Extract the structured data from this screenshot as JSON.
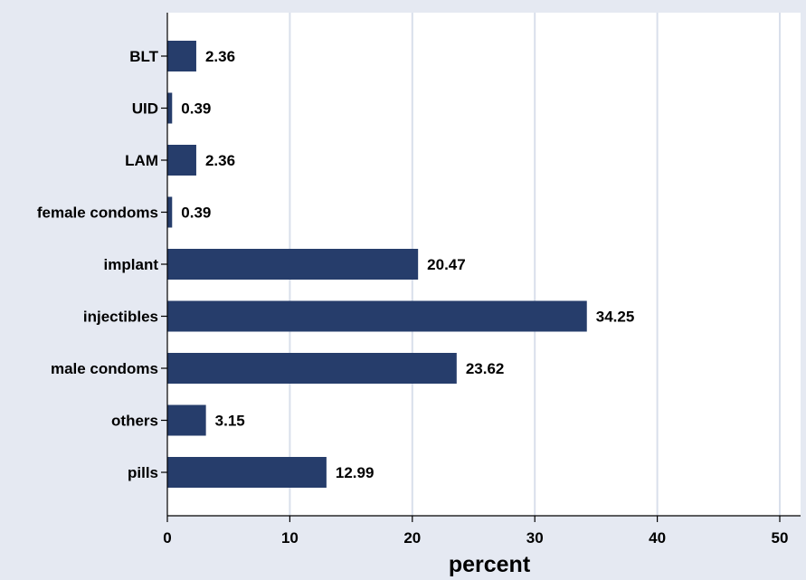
{
  "chart_data": {
    "type": "bar",
    "orientation": "horizontal",
    "categories": [
      "BLT",
      "UID",
      "LAM",
      "female condoms",
      "implant",
      "injectibles",
      "male condoms",
      "others",
      "pills"
    ],
    "values": [
      2.36,
      0.39,
      2.36,
      0.39,
      20.47,
      34.25,
      23.62,
      3.15,
      12.99
    ],
    "value_labels": [
      "2.36",
      "0.39",
      "2.36",
      "0.39",
      "20.47",
      "34.25",
      "23.62",
      "3.15",
      "12.99"
    ],
    "xlabel": "percent",
    "ylabel": "",
    "title": "",
    "xlim": [
      0,
      50
    ],
    "xticks": [
      0,
      10,
      20,
      30,
      40,
      50
    ],
    "xtick_labels": [
      "0",
      "10",
      "20",
      "30",
      "40",
      "50"
    ],
    "grid": true,
    "colors": {
      "bar": "#263d6b",
      "background": "#e5e9f2",
      "plot_area": "#ffffff",
      "gridline": "#d9dfeb",
      "axis": "#000000",
      "text": "#000000"
    }
  }
}
